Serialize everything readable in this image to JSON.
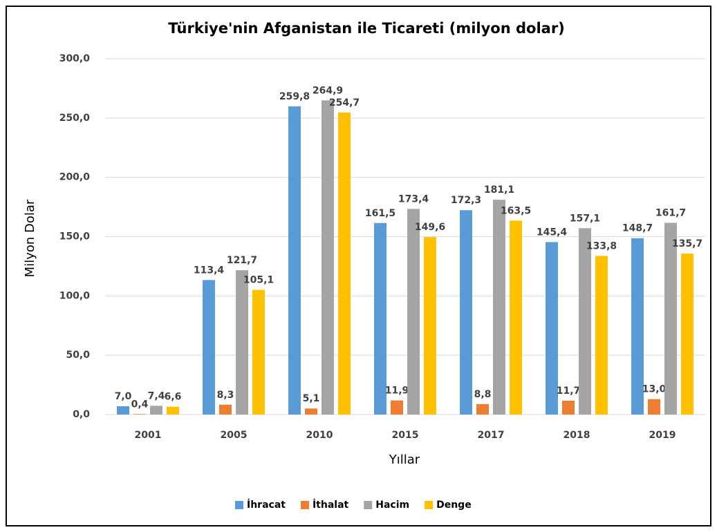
{
  "chart_data": {
    "type": "bar",
    "title": "Türkiye'nin Afganistan ile Ticareti (milyon dolar)",
    "x_label": "Yıllar",
    "y_label": "Milyon Dolar",
    "categories": [
      "2001",
      "2005",
      "2010",
      "2015",
      "2017",
      "2018",
      "2019"
    ],
    "series": [
      {
        "name": "İhracat",
        "color": "#5b9bd5",
        "values": [
          7.0,
          113.4,
          259.8,
          161.5,
          172.3,
          145.4,
          148.7
        ],
        "value_labels": [
          "7,0",
          "113,4",
          "259,8",
          "161,5",
          "172,3",
          "145,4",
          "148,7"
        ]
      },
      {
        "name": "İthalat",
        "color": "#ed7d31",
        "values": [
          0.4,
          8.3,
          5.1,
          11.9,
          8.8,
          11.7,
          13.0
        ],
        "value_labels": [
          "0,4",
          "8,3",
          "5,1",
          "11,9",
          "8,8",
          "11,7",
          "13,0"
        ]
      },
      {
        "name": "Hacim",
        "color": "#a5a5a5",
        "values": [
          7.4,
          121.7,
          264.9,
          173.4,
          181.1,
          157.1,
          161.7
        ],
        "value_labels": [
          "7,4",
          "121,7",
          "264,9",
          "173,4",
          "181,1",
          "157,1",
          "161,7"
        ]
      },
      {
        "name": "Denge",
        "color": "#ffc000",
        "values": [
          6.6,
          105.1,
          254.7,
          149.6,
          163.5,
          133.8,
          135.7
        ],
        "value_labels": [
          "6,6",
          "105,1",
          "254,7",
          "149,6",
          "163,5",
          "133,8",
          "135,7"
        ]
      }
    ],
    "ylim": [
      0,
      300
    ],
    "yticks": [
      {
        "value": 0,
        "label": "0,0"
      },
      {
        "value": 50,
        "label": "50,0"
      },
      {
        "value": 100,
        "label": "100,0"
      },
      {
        "value": 150,
        "label": "150,0"
      },
      {
        "value": 200,
        "label": "200,0"
      },
      {
        "value": 250,
        "label": "250,0"
      },
      {
        "value": 300,
        "label": "300,0"
      }
    ],
    "grid": true,
    "legend": "bottom"
  }
}
